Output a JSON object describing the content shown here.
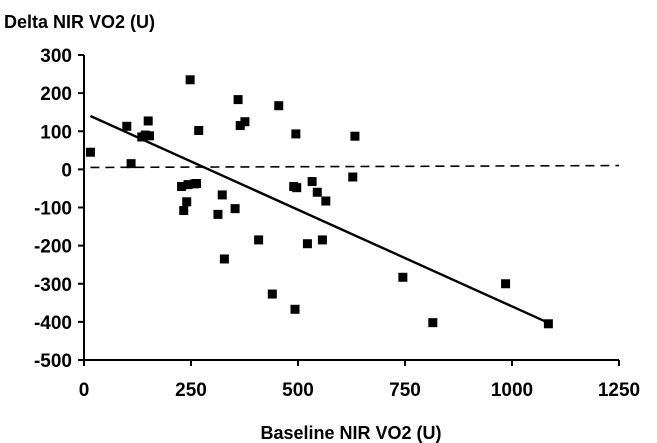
{
  "chart_data": {
    "type": "scatter",
    "ylabel": "Delta NIR VO2 (U)",
    "xlabel": "Baseline NIR VO2 (U)",
    "xlim": [
      0,
      1250
    ],
    "ylim": [
      -500,
      300
    ],
    "xticks": [
      0,
      250,
      500,
      750,
      1000,
      1250
    ],
    "yticks": [
      -500,
      -400,
      -300,
      -200,
      -100,
      0,
      100,
      200,
      300
    ],
    "grid": false,
    "points": [
      {
        "x": 15,
        "y": 45
      },
      {
        "x": 100,
        "y": 113
      },
      {
        "x": 110,
        "y": 15
      },
      {
        "x": 135,
        "y": 85
      },
      {
        "x": 143,
        "y": 90
      },
      {
        "x": 150,
        "y": 127
      },
      {
        "x": 153,
        "y": 88
      },
      {
        "x": 228,
        "y": -45
      },
      {
        "x": 233,
        "y": -108
      },
      {
        "x": 240,
        "y": -85
      },
      {
        "x": 243,
        "y": -40
      },
      {
        "x": 248,
        "y": 235
      },
      {
        "x": 258,
        "y": -38
      },
      {
        "x": 263,
        "y": -37
      },
      {
        "x": 268,
        "y": 102
      },
      {
        "x": 313,
        "y": -118
      },
      {
        "x": 323,
        "y": -67
      },
      {
        "x": 328,
        "y": -235
      },
      {
        "x": 353,
        "y": -103
      },
      {
        "x": 360,
        "y": 183
      },
      {
        "x": 365,
        "y": 115
      },
      {
        "x": 376,
        "y": 125
      },
      {
        "x": 408,
        "y": -185
      },
      {
        "x": 440,
        "y": -327
      },
      {
        "x": 455,
        "y": 167
      },
      {
        "x": 490,
        "y": -45
      },
      {
        "x": 493,
        "y": -367
      },
      {
        "x": 495,
        "y": 93
      },
      {
        "x": 497,
        "y": -48
      },
      {
        "x": 522,
        "y": -195
      },
      {
        "x": 533,
        "y": -32
      },
      {
        "x": 545,
        "y": -60
      },
      {
        "x": 557,
        "y": -185
      },
      {
        "x": 565,
        "y": -83
      },
      {
        "x": 628,
        "y": -20
      },
      {
        "x": 633,
        "y": 87
      },
      {
        "x": 745,
        "y": -283
      },
      {
        "x": 815,
        "y": -402
      },
      {
        "x": 985,
        "y": -300
      },
      {
        "x": 1085,
        "y": -405
      }
    ],
    "regression_line": {
      "x": [
        15,
        1090
      ],
      "y": [
        140,
        -405
      ],
      "style": "solid"
    },
    "reference_line": {
      "x": [
        15,
        1250
      ],
      "y": [
        5,
        10
      ],
      "style": "dashed"
    }
  }
}
